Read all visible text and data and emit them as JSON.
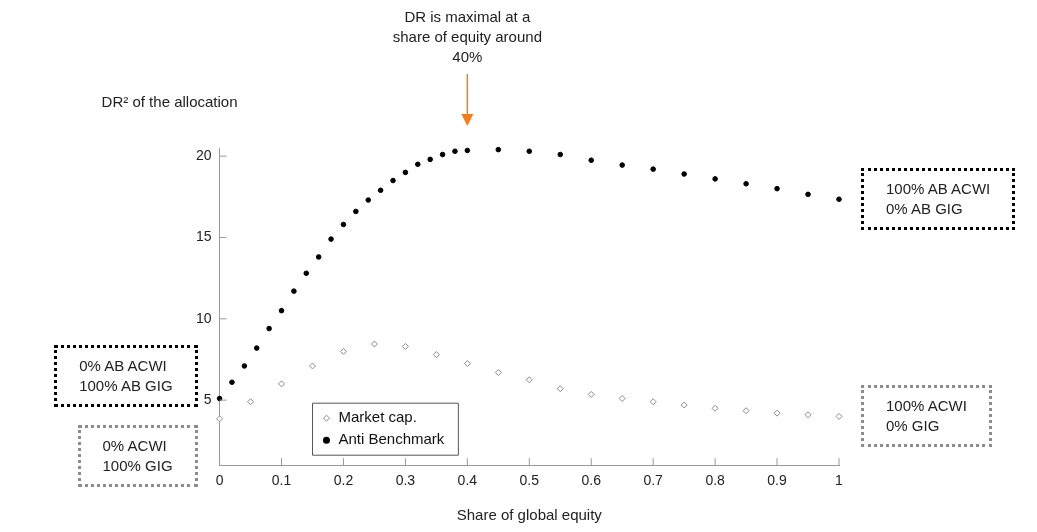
{
  "chart_data": {
    "type": "scatter",
    "title": "DR is maximal at a share of equity around 40%",
    "xlabel": "Share of global equity",
    "ylabel": "DR² of the allocation",
    "xlim": [
      0,
      1
    ],
    "xticks": [
      0,
      0.1,
      0.2,
      0.3,
      0.4,
      0.5,
      0.6,
      0.7,
      0.8,
      0.9,
      1
    ],
    "ylim": [
      1,
      20.5
    ],
    "yticks": [
      5,
      10,
      15,
      20
    ],
    "grid": false,
    "legend": "bottom left",
    "series": [
      {
        "name": "Market cap.",
        "color": "#8c8c8c",
        "marker": "diamond",
        "x": [
          0,
          0.05,
          0.1,
          0.15,
          0.2,
          0.25,
          0.3,
          0.35,
          0.4,
          0.45,
          0.5,
          0.55,
          0.6,
          0.65,
          0.7,
          0.75,
          0.8,
          0.85,
          0.9,
          0.95,
          1
        ],
        "values": [
          3.85,
          4.9,
          6.0,
          7.1,
          8.0,
          8.45,
          8.3,
          7.8,
          7.25,
          6.7,
          6.25,
          5.7,
          5.35,
          5.1,
          4.9,
          4.7,
          4.5,
          4.35,
          4.2,
          4.1,
          4.0
        ]
      },
      {
        "name": "Anti Benchmark",
        "color": "#000000",
        "marker": "circle",
        "x": [
          0,
          0.02,
          0.04,
          0.06,
          0.08,
          0.1,
          0.12,
          0.14,
          0.16,
          0.18,
          0.2,
          0.22,
          0.24,
          0.26,
          0.28,
          0.3,
          0.32,
          0.34,
          0.36,
          0.38,
          0.4,
          0.45,
          0.5,
          0.55,
          0.6,
          0.65,
          0.7,
          0.75,
          0.8,
          0.85,
          0.9,
          0.95,
          1
        ],
        "values": [
          5.1,
          6.1,
          7.1,
          8.2,
          9.4,
          10.5,
          11.7,
          12.8,
          13.8,
          14.9,
          15.8,
          16.6,
          17.3,
          17.9,
          18.5,
          19.0,
          19.5,
          19.8,
          20.1,
          20.3,
          20.35,
          20.4,
          20.3,
          20.1,
          19.75,
          19.45,
          19.2,
          18.9,
          18.6,
          18.3,
          18.0,
          17.65,
          17.35
        ]
      }
    ],
    "annotations": [
      "0% AB ACWI\n100% AB GIG",
      "0% ACWI\n100% GIG",
      "100% AB ACWI\n0% AB GIG",
      "100% ACWI\n0% GIG"
    ]
  }
}
